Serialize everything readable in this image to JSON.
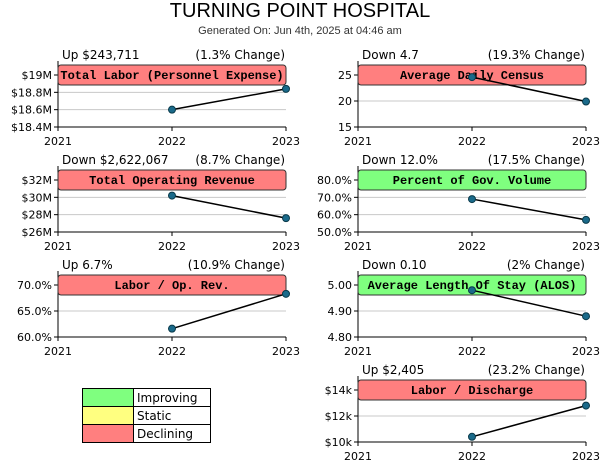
{
  "report": {
    "title": "TURNING POINT HOSPITAL",
    "generated": "Generated On: Jun 4th, 2025 at 04:46 am"
  },
  "legend": {
    "items": [
      {
        "label": "Improving",
        "color": "#7fff7f"
      },
      {
        "label": "Static",
        "color": "#ffff80"
      },
      {
        "label": "Declining",
        "color": "#ff7f7f"
      }
    ]
  },
  "colors": {
    "improving": "#7fff7f",
    "declining": "#ff7f7f",
    "marker": "#1a6a8a",
    "line": "#000000",
    "grid": "#c8c8c8"
  },
  "chart_data": [
    {
      "type": "line",
      "title": "Total Labor (Personnel Expense)",
      "status": "declining",
      "change_summary": "Up $243,711",
      "change_pct": "(1.3% Change)",
      "x": [
        "2021",
        "2022",
        "2023"
      ],
      "values": [
        null,
        18.6,
        18.84
      ],
      "unit": "$M",
      "ylim": [
        18.4,
        19
      ],
      "yticks": [
        18.4,
        18.6,
        18.8,
        19
      ],
      "ytick_labels": [
        "$18.4M",
        "$18.6M",
        "$18.8M",
        "$19M"
      ]
    },
    {
      "type": "line",
      "title": "Average Daily Census",
      "status": "declining",
      "change_summary": "Down 4.7",
      "change_pct": "(19.3% Change)",
      "x": [
        "2021",
        "2022",
        "2023"
      ],
      "values": [
        null,
        24.6,
        19.9
      ],
      "ylim": [
        15,
        25
      ],
      "yticks": [
        15,
        20,
        25
      ],
      "ytick_labels": [
        "15",
        "20",
        "25"
      ]
    },
    {
      "type": "line",
      "title": "Total Operating Revenue",
      "status": "declining",
      "change_summary": "Down $2,622,067",
      "change_pct": "(8.7% Change)",
      "x": [
        "2021",
        "2022",
        "2023"
      ],
      "values": [
        null,
        30.2,
        27.6
      ],
      "unit": "$M",
      "ylim": [
        26,
        32
      ],
      "yticks": [
        26,
        28,
        30,
        32
      ],
      "ytick_labels": [
        "$26M",
        "$28M",
        "$30M",
        "$32M"
      ]
    },
    {
      "type": "line",
      "title": "Percent of Gov. Volume",
      "status": "improving",
      "change_summary": "Down 12.0%",
      "change_pct": "(17.5% Change)",
      "x": [
        "2021",
        "2022",
        "2023"
      ],
      "values": [
        null,
        69,
        57
      ],
      "unit": "%",
      "ylim": [
        50,
        80
      ],
      "yticks": [
        50,
        60,
        70,
        80
      ],
      "ytick_labels": [
        "50.0%",
        "60.0%",
        "70.0%",
        "80.0%"
      ]
    },
    {
      "type": "line",
      "title": "Labor / Op. Rev.",
      "status": "declining",
      "change_summary": "Up 6.7%",
      "change_pct": "(10.9% Change)",
      "x": [
        "2021",
        "2022",
        "2023"
      ],
      "values": [
        null,
        61.6,
        68.3
      ],
      "unit": "%",
      "ylim": [
        60,
        70
      ],
      "yticks": [
        60,
        65,
        70
      ],
      "ytick_labels": [
        "60.0%",
        "65.0%",
        "70.0%"
      ]
    },
    {
      "type": "line",
      "title": "Average Length Of Stay (ALOS)",
      "status": "improving",
      "change_summary": "Down 0.10",
      "change_pct": "(2% Change)",
      "x": [
        "2021",
        "2022",
        "2023"
      ],
      "values": [
        null,
        4.98,
        4.88
      ],
      "ylim": [
        4.8,
        5.0
      ],
      "yticks": [
        4.8,
        4.9,
        5.0
      ],
      "ytick_labels": [
        "4.80",
        "4.90",
        "5.00"
      ]
    },
    {
      "type": "line",
      "title": "Labor / Discharge",
      "status": "declining",
      "change_summary": "Up $2,405",
      "change_pct": "(23.2% Change)",
      "x": [
        "2021",
        "2022",
        "2023"
      ],
      "values": [
        null,
        10.4,
        12.8
      ],
      "unit": "$k",
      "ylim": [
        10,
        14
      ],
      "yticks": [
        10,
        12,
        14
      ],
      "ytick_labels": [
        "$10k",
        "$12k",
        "$14k"
      ]
    }
  ]
}
